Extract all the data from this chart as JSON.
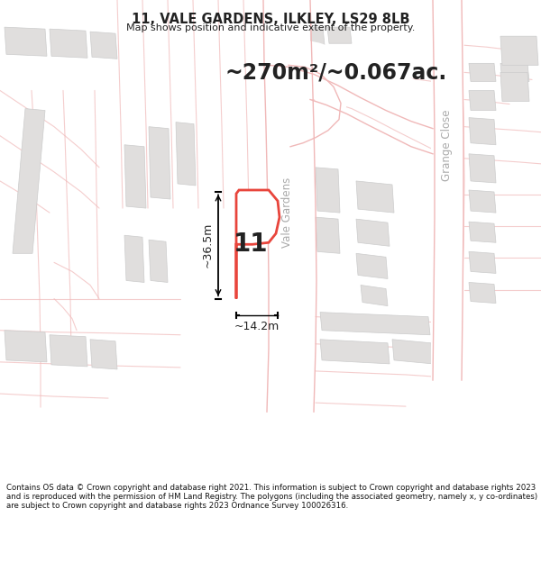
{
  "title": "11, VALE GARDENS, ILKLEY, LS29 8LB",
  "subtitle": "Map shows position and indicative extent of the property.",
  "area_text": "~270m²/~0.067ac.",
  "dim1_text": "~36.5m",
  "dim2_text": "~14.2m",
  "label_number": "11",
  "road_label": "Vale Gardens",
  "road_label2": "Grange Close",
  "footer": "Contains OS data © Crown copyright and database right 2021. This information is subject to Crown copyright and database rights 2023 and is reproduced with the permission of HM Land Registry. The polygons (including the associated geometry, namely x, y co-ordinates) are subject to Crown copyright and database rights 2023 Ordnance Survey 100026316.",
  "bg_color": "#f5f4f2",
  "map_bg": "#f5f4f2",
  "plot_color": "#e8453c",
  "road_color": "#e8453c",
  "road_outline_color": "#f0b8b8",
  "building_fill": "#e0dedd",
  "building_edge": "#cccccc",
  "road_fill": "#ffffff",
  "text_color": "#222222",
  "footer_bg": "#ffffff",
  "label_color": "#aaaaaa"
}
